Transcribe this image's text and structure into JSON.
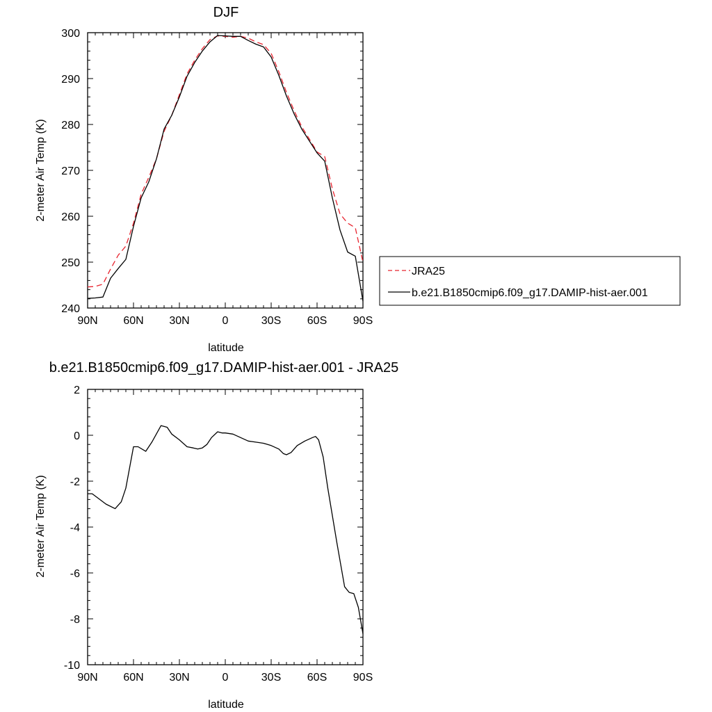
{
  "colors": {
    "model": "#000000",
    "obs": "#e8242f"
  },
  "chart_data": [
    {
      "type": "line",
      "title": "DJF",
      "xlabel": "latitude",
      "ylabel": "2-meter Air Temp (K)",
      "xlim": [
        90,
        -90
      ],
      "ylim": [
        240,
        300
      ],
      "xticks": [
        90,
        60,
        30,
        0,
        -30,
        -60,
        -90
      ],
      "xtick_labels": [
        "90N",
        "60N",
        "30N",
        "0",
        "30S",
        "60S",
        "90S"
      ],
      "yticks": [
        240,
        250,
        260,
        270,
        280,
        290,
        300
      ],
      "ytick_labels": [
        "240",
        "250",
        "260",
        "270",
        "280",
        "290",
        "300"
      ],
      "legend": "right",
      "series": [
        {
          "name": "JRA25",
          "style": "dashed",
          "color": "#e8242f",
          "x": [
            90,
            85,
            80,
            75,
            70,
            65,
            60,
            55,
            50,
            45,
            40,
            35,
            30,
            25,
            20,
            15,
            10,
            5,
            0,
            -5,
            -10,
            -15,
            -20,
            -25,
            -30,
            -35,
            -40,
            -45,
            -50,
            -55,
            -60,
            -65,
            -70,
            -75,
            -80,
            -85,
            -90
          ],
          "values": [
            244.6,
            244.7,
            245.2,
            248.5,
            251.5,
            253.5,
            258.5,
            264.8,
            268.5,
            272.5,
            278.5,
            282.0,
            286.5,
            291.0,
            294.0,
            296.5,
            298.5,
            299.3,
            299.2,
            299.0,
            299.2,
            298.8,
            298.0,
            297.4,
            295.5,
            291.5,
            287.0,
            283.0,
            279.5,
            276.8,
            274.0,
            273.0,
            266.0,
            260.5,
            258.5,
            257.5,
            250.0
          ]
        },
        {
          "name": "b.e21.B1850cmip6.f09_g17.DAMIP-hist-aer.001",
          "style": "solid",
          "color": "#000000",
          "x": [
            90,
            85,
            80,
            75,
            70,
            65,
            60,
            55,
            50,
            45,
            40,
            35,
            30,
            25,
            20,
            15,
            10,
            5,
            0,
            -5,
            -10,
            -15,
            -20,
            -25,
            -30,
            -35,
            -40,
            -45,
            -50,
            -55,
            -60,
            -65,
            -70,
            -75,
            -80,
            -85,
            -90
          ],
          "values": [
            242.1,
            242.2,
            242.4,
            246.5,
            248.6,
            250.6,
            257.8,
            264.0,
            267.5,
            272.5,
            279.0,
            282.0,
            286.0,
            290.5,
            293.5,
            296.0,
            298.0,
            299.4,
            299.3,
            299.2,
            299.2,
            298.3,
            297.5,
            296.9,
            294.7,
            290.7,
            286.2,
            282.3,
            279.0,
            276.4,
            273.8,
            272.0,
            264.0,
            257.0,
            252.2,
            251.3,
            241.5
          ]
        }
      ]
    },
    {
      "type": "line",
      "title": "b.e21.B1850cmip6.f09_g17.DAMIP-hist-aer.001 - JRA25",
      "xlabel": "latitude",
      "ylabel": "2-meter Air Temp (K)",
      "xlim": [
        90,
        -90
      ],
      "ylim": [
        -10,
        2
      ],
      "xticks": [
        90,
        60,
        30,
        0,
        -30,
        -60,
        -90
      ],
      "xtick_labels": [
        "90N",
        "60N",
        "30N",
        "0",
        "30S",
        "60S",
        "90S"
      ],
      "yticks": [
        -10,
        -8,
        -6,
        -4,
        -2,
        0,
        2
      ],
      "ytick_labels": [
        "-10",
        "-8",
        "-6",
        "-4",
        "-2",
        "0",
        "2"
      ],
      "series": [
        {
          "style": "solid",
          "color": "#000000",
          "x": [
            90,
            87,
            82,
            78,
            72,
            68,
            65,
            60,
            57,
            52,
            48,
            42,
            38,
            35,
            30,
            25,
            21,
            18,
            15,
            12,
            9,
            5,
            2,
            0,
            -5,
            -10,
            -15,
            -20,
            -25,
            -30,
            -35,
            -38,
            -40,
            -43,
            -47,
            -52,
            -57,
            -59,
            -61,
            -64,
            -67,
            -70,
            -73,
            -78,
            -81,
            -84,
            -87,
            -90
          ],
          "values": [
            -2.55,
            -2.55,
            -2.8,
            -3.0,
            -3.2,
            -2.9,
            -2.3,
            -0.5,
            -0.5,
            -0.7,
            -0.3,
            0.42,
            0.35,
            0.05,
            -0.2,
            -0.5,
            -0.55,
            -0.6,
            -0.55,
            -0.4,
            -0.1,
            0.15,
            0.1,
            0.1,
            0.05,
            -0.1,
            -0.25,
            -0.3,
            -0.35,
            -0.45,
            -0.6,
            -0.8,
            -0.85,
            -0.75,
            -0.45,
            -0.25,
            -0.1,
            -0.05,
            -0.2,
            -0.95,
            -2.3,
            -3.5,
            -4.7,
            -6.6,
            -6.85,
            -6.9,
            -7.5,
            -8.65
          ]
        }
      ]
    }
  ]
}
